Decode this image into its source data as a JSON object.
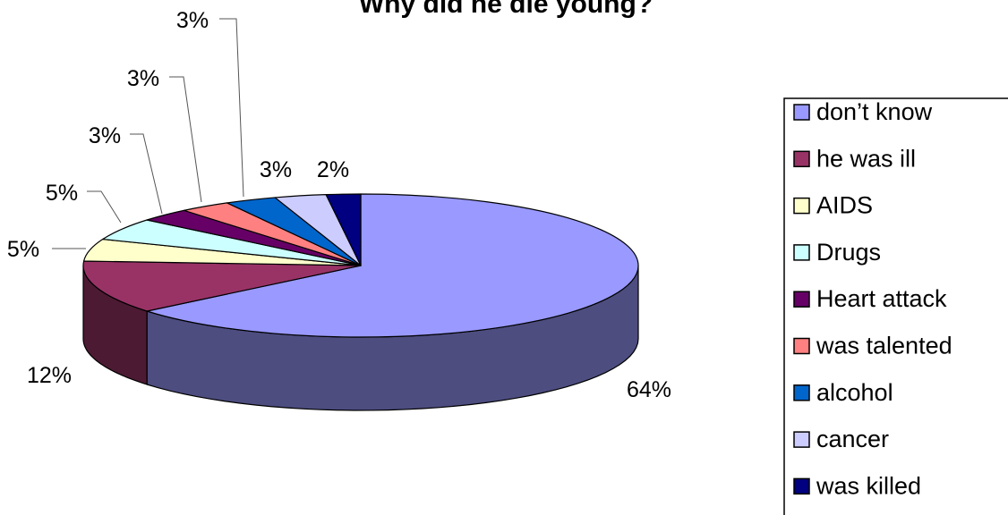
{
  "chart_data": {
    "type": "pie",
    "title": "Why did he die young?",
    "legend_position": "right",
    "slices": [
      {
        "label": "don’t know",
        "value": 64,
        "display": "64%",
        "color": "#9999FF",
        "side_color": "#4D4D80"
      },
      {
        "label": "he was ill",
        "value": 12,
        "display": "12%",
        "color": "#993366",
        "side_color": "#4D1A33"
      },
      {
        "label": "AIDS",
        "value": 5,
        "display": "5%",
        "color": "#FFFFCC",
        "side_color": "#808066"
      },
      {
        "label": "Drugs",
        "value": 5,
        "display": "5%",
        "color": "#CCFFFF",
        "side_color": "#668080"
      },
      {
        "label": "Heart attack",
        "value": 3,
        "display": "3%",
        "color": "#660066",
        "side_color": "#330033"
      },
      {
        "label": "was talented",
        "value": 3,
        "display": "3%",
        "color": "#FF8080",
        "side_color": "#804040"
      },
      {
        "label": "alcohol",
        "value": 3,
        "display": "3%",
        "color": "#0066CC",
        "side_color": "#003366"
      },
      {
        "label": "cancer",
        "value": 3,
        "display": "3%",
        "color": "#CCCCFF",
        "side_color": "#666680"
      },
      {
        "label": "was killed",
        "value": 2,
        "display": "2%",
        "color": "#000080",
        "side_color": "#000040"
      }
    ]
  }
}
